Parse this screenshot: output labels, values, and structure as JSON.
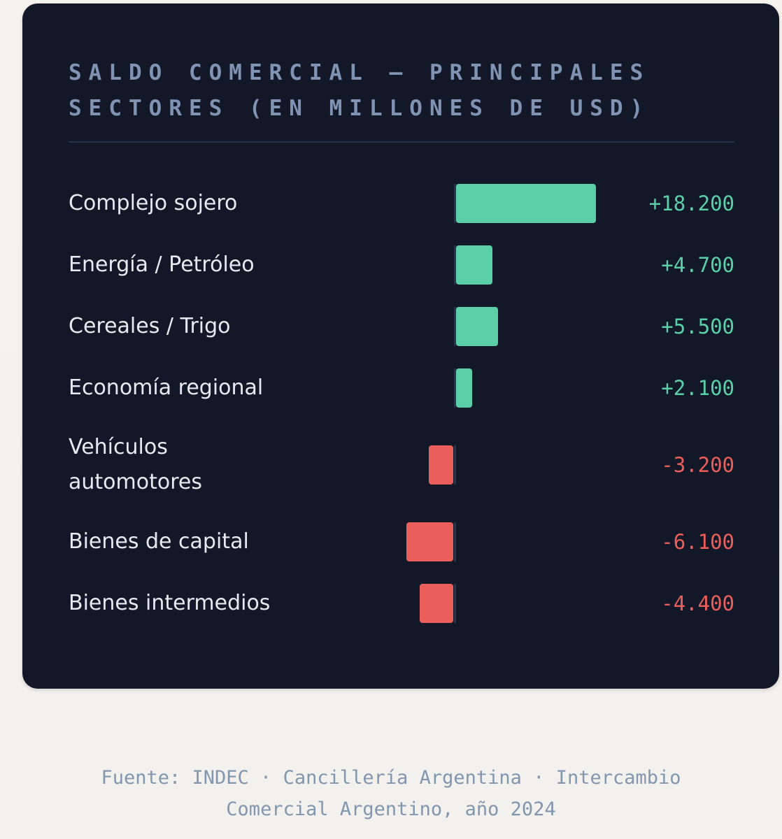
{
  "chart_data": {
    "type": "bar",
    "orientation": "horizontal",
    "title": "SALDO COMERCIAL — PRINCIPALES SECTORES (EN MILLONES DE USD)",
    "categories": [
      "Complejo sojero",
      "Energía / Petróleo",
      "Cereales / Trigo",
      "Economía regional",
      "Vehículos automotores",
      "Bienes de capital",
      "Bienes intermedios"
    ],
    "values": [
      18200,
      4700,
      5500,
      2100,
      -3200,
      -6100,
      -4400
    ],
    "value_labels": [
      "+18.200",
      "+4.700",
      "+5.500",
      "+2.100",
      "-3.200",
      "-6.100",
      "-4.400"
    ],
    "colors": {
      "positive": "#5bcfa7",
      "negative": "#ea5f5b"
    }
  },
  "source": {
    "line1": "Fuente: INDEC · Cancillería Argentina · Intercambio",
    "line2": "Comercial Argentino, año 2024"
  }
}
